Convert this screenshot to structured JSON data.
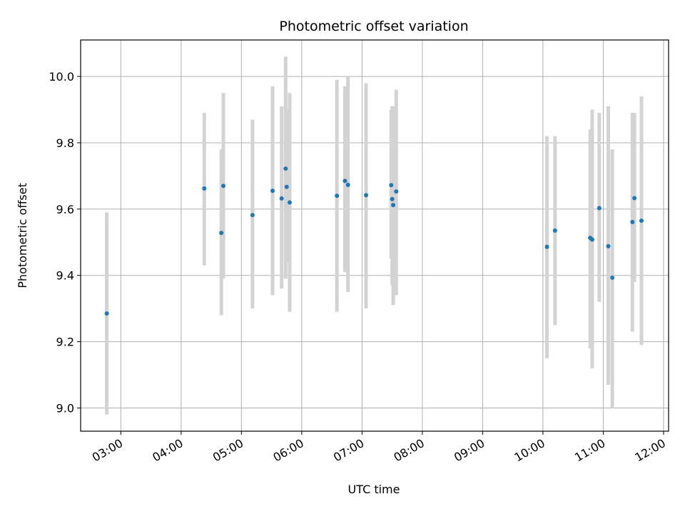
{
  "chart_data": {
    "type": "scatter",
    "title": "Photometric offset variation",
    "xlabel": "UTC time",
    "ylabel": "Photometric offset",
    "xlim": [
      "02:20",
      "12:05"
    ],
    "ylim": [
      8.93,
      10.11
    ],
    "x_ticks": [
      "03:00",
      "04:00",
      "05:00",
      "06:00",
      "07:00",
      "08:00",
      "09:00",
      "10:00",
      "11:00",
      "12:00"
    ],
    "y_ticks": [
      "9.0",
      "9.2",
      "9.4",
      "9.6",
      "9.8",
      "10.0"
    ],
    "grid": true,
    "legend": "none",
    "colors": {
      "point": "#1f77b4",
      "errorbar": "#d3d3d3",
      "grid": "#b0b0b0"
    },
    "points": [
      {
        "x": "02:46",
        "y": 9.285,
        "ylow": 8.98,
        "yhigh": 9.59
      },
      {
        "x": "04:23",
        "y": 9.662,
        "ylow": 9.43,
        "yhigh": 9.89
      },
      {
        "x": "04:40",
        "y": 9.528,
        "ylow": 9.28,
        "yhigh": 9.78
      },
      {
        "x": "04:42",
        "y": 9.67,
        "ylow": 9.39,
        "yhigh": 9.95
      },
      {
        "x": "05:11",
        "y": 9.582,
        "ylow": 9.3,
        "yhigh": 9.87
      },
      {
        "x": "05:31",
        "y": 9.655,
        "ylow": 9.34,
        "yhigh": 9.97
      },
      {
        "x": "05:40",
        "y": 9.632,
        "ylow": 9.36,
        "yhigh": 9.91
      },
      {
        "x": "05:44",
        "y": 9.722,
        "ylow": 9.39,
        "yhigh": 10.06
      },
      {
        "x": "05:45",
        "y": 9.667,
        "ylow": 9.44,
        "yhigh": 9.9
      },
      {
        "x": "05:48",
        "y": 9.62,
        "ylow": 9.29,
        "yhigh": 9.95
      },
      {
        "x": "06:35",
        "y": 9.64,
        "ylow": 9.29,
        "yhigh": 9.99
      },
      {
        "x": "06:43",
        "y": 9.685,
        "ylow": 9.41,
        "yhigh": 9.97
      },
      {
        "x": "06:46",
        "y": 9.673,
        "ylow": 9.35,
        "yhigh": 10.0
      },
      {
        "x": "07:04",
        "y": 9.642,
        "ylow": 9.3,
        "yhigh": 9.98
      },
      {
        "x": "07:29",
        "y": 9.672,
        "ylow": 9.45,
        "yhigh": 9.9
      },
      {
        "x": "07:30",
        "y": 9.63,
        "ylow": 9.37,
        "yhigh": 9.91
      },
      {
        "x": "07:31",
        "y": 9.612,
        "ylow": 9.31,
        "yhigh": 9.91
      },
      {
        "x": "07:34",
        "y": 9.653,
        "ylow": 9.34,
        "yhigh": 9.96
      },
      {
        "x": "10:04",
        "y": 9.486,
        "ylow": 9.15,
        "yhigh": 9.82
      },
      {
        "x": "10:12",
        "y": 9.535,
        "ylow": 9.25,
        "yhigh": 9.82
      },
      {
        "x": "10:47",
        "y": 9.513,
        "ylow": 9.18,
        "yhigh": 9.84
      },
      {
        "x": "10:49",
        "y": 9.508,
        "ylow": 9.12,
        "yhigh": 9.9
      },
      {
        "x": "10:56",
        "y": 9.603,
        "ylow": 9.32,
        "yhigh": 9.89
      },
      {
        "x": "11:05",
        "y": 9.488,
        "ylow": 9.07,
        "yhigh": 9.91
      },
      {
        "x": "11:09",
        "y": 9.393,
        "ylow": 9.0,
        "yhigh": 9.78
      },
      {
        "x": "11:29",
        "y": 9.561,
        "ylow": 9.23,
        "yhigh": 9.89
      },
      {
        "x": "11:31",
        "y": 9.633,
        "ylow": 9.38,
        "yhigh": 9.89
      },
      {
        "x": "11:38",
        "y": 9.565,
        "ylow": 9.19,
        "yhigh": 9.94
      }
    ]
  }
}
